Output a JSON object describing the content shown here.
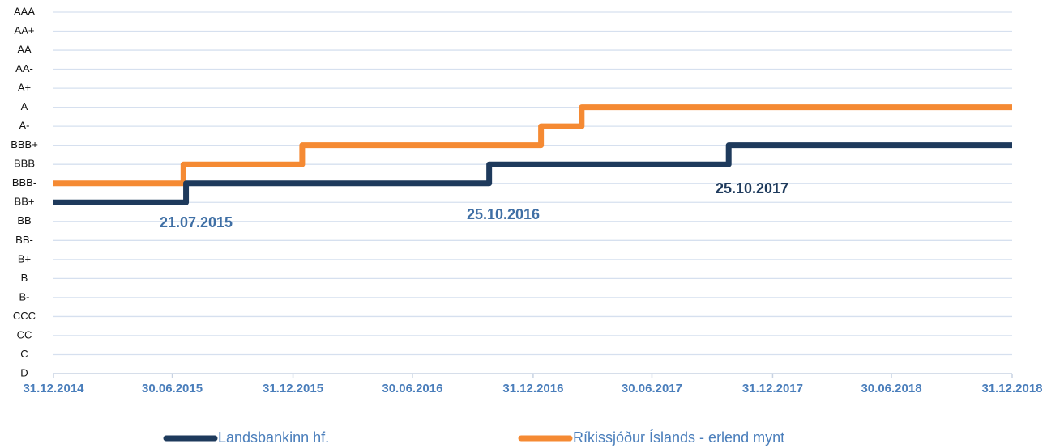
{
  "chart_data": {
    "type": "step",
    "yticks": [
      {
        "value": 0,
        "label": "D"
      },
      {
        "value": 1,
        "label": "C"
      },
      {
        "value": 2,
        "label": "CC"
      },
      {
        "value": 3,
        "label": "CCC"
      },
      {
        "value": 4,
        "label": "B-"
      },
      {
        "value": 5,
        "label": "B"
      },
      {
        "value": 6,
        "label": "B+"
      },
      {
        "value": 7,
        "label": "BB-"
      },
      {
        "value": 8,
        "label": "BB"
      },
      {
        "value": 9,
        "label": "BB+"
      },
      {
        "value": 10,
        "label": "BBB-"
      },
      {
        "value": 11,
        "label": "BBB"
      },
      {
        "value": 12,
        "label": "BBB+"
      },
      {
        "value": 13,
        "label": "A-"
      },
      {
        "value": 14,
        "label": "A"
      },
      {
        "value": 15,
        "label": "A+"
      },
      {
        "value": 16,
        "label": "AA-"
      },
      {
        "value": 17,
        "label": "AA"
      },
      {
        "value": 18,
        "label": "AA+"
      },
      {
        "value": 19,
        "label": "AAA"
      }
    ],
    "ylim": [
      0,
      19
    ],
    "xlim": [
      "2014-12-31",
      "2018-12-31"
    ],
    "xticks": [
      {
        "value": "2014-12-31",
        "label": "31.12.2014"
      },
      {
        "value": "2015-06-30",
        "label": "30.06.2015"
      },
      {
        "value": "2015-12-31",
        "label": "31.12.2015"
      },
      {
        "value": "2016-06-30",
        "label": "30.06.2016"
      },
      {
        "value": "2016-12-31",
        "label": "31.12.2016"
      },
      {
        "value": "2017-06-30",
        "label": "30.06.2017"
      },
      {
        "value": "2017-12-31",
        "label": "31.12.2017"
      },
      {
        "value": "2018-06-30",
        "label": "30.06.2018"
      },
      {
        "value": "2018-12-31",
        "label": "31.12.2018"
      }
    ],
    "grid": true,
    "legend": "bottom",
    "series": [
      {
        "name": "Landsbankinn hf.",
        "color": "#1e3a5c",
        "x": [
          "2014-12-31",
          "2015-07-21",
          "2016-10-25",
          "2017-10-25",
          "2018-12-31"
        ],
        "values": [
          9,
          10,
          11,
          12,
          12
        ]
      },
      {
        "name": "Ríkissjóður Íslands - erlend mynt",
        "color": "#f58a33",
        "x": [
          "2014-12-31",
          "2015-07-17",
          "2016-01-14",
          "2017-01-12",
          "2017-03-15",
          "2018-12-31"
        ],
        "values": [
          10,
          11,
          12,
          13,
          14,
          14
        ]
      }
    ],
    "annotations": [
      {
        "text": "21.07.2015",
        "color": "#3f6fa5"
      },
      {
        "text": "25.10.2016",
        "color": "#3f6fa5"
      },
      {
        "text": "25.10.2017",
        "color": "#1e3a5c"
      }
    ]
  }
}
